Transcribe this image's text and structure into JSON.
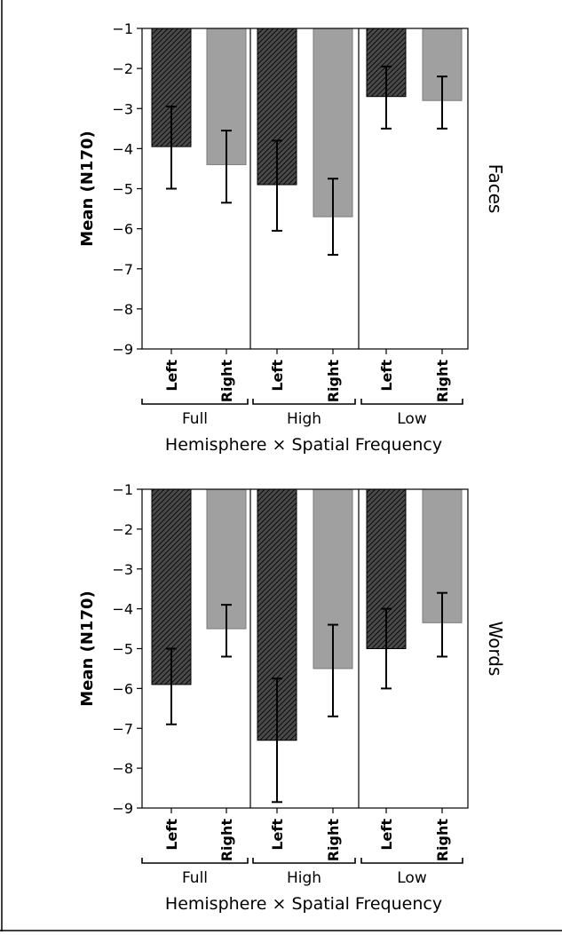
{
  "chart_data": [
    {
      "type": "bar",
      "panel_label": "Faces",
      "ylabel": "Mean (N170)",
      "xlabel": "Hemisphere × Spatial Frequency",
      "ylim": [
        -9,
        -1
      ],
      "yticks": [
        -1,
        -2,
        -3,
        -4,
        -5,
        -6,
        -7,
        -8,
        -9
      ],
      "ytick_labels": [
        "−1",
        "−2",
        "−3",
        "−4",
        "−5",
        "−6",
        "−7",
        "−8",
        "−9"
      ],
      "groups": [
        "Full",
        "High",
        "Low"
      ],
      "categories": [
        "Left",
        "Right"
      ],
      "bars": [
        {
          "group": "Full",
          "category": "Left",
          "value": -3.95,
          "err_low": -5.0,
          "err_high": -2.95
        },
        {
          "group": "Full",
          "category": "Right",
          "value": -4.4,
          "err_low": -5.35,
          "err_high": -3.55
        },
        {
          "group": "High",
          "category": "Left",
          "value": -4.9,
          "err_low": -6.05,
          "err_high": -3.8
        },
        {
          "group": "High",
          "category": "Right",
          "value": -5.7,
          "err_low": -6.65,
          "err_high": -4.75
        },
        {
          "group": "Low",
          "category": "Left",
          "value": -2.7,
          "err_low": -3.5,
          "err_high": -1.95
        },
        {
          "group": "Low",
          "category": "Right",
          "value": -2.8,
          "err_low": -3.5,
          "err_high": -2.2
        }
      ],
      "colors": {
        "Left": "#3a3a3a",
        "Right": "#a0a0a0"
      }
    },
    {
      "type": "bar",
      "panel_label": "Words",
      "ylabel": "Mean (N170)",
      "xlabel": "Hemisphere × Spatial Frequency",
      "ylim": [
        -9,
        -1
      ],
      "yticks": [
        -1,
        -2,
        -3,
        -4,
        -5,
        -6,
        -7,
        -8,
        -9
      ],
      "ytick_labels": [
        "−1",
        "−2",
        "−3",
        "−4",
        "−5",
        "−6",
        "−7",
        "−8",
        "−9"
      ],
      "groups": [
        "Full",
        "High",
        "Low"
      ],
      "categories": [
        "Left",
        "Right"
      ],
      "bars": [
        {
          "group": "Full",
          "category": "Left",
          "value": -5.9,
          "err_low": -6.9,
          "err_high": -5.0
        },
        {
          "group": "Full",
          "category": "Right",
          "value": -4.5,
          "err_low": -5.2,
          "err_high": -3.9
        },
        {
          "group": "High",
          "category": "Left",
          "value": -7.3,
          "err_low": -8.85,
          "err_high": -5.75
        },
        {
          "group": "High",
          "category": "Right",
          "value": -5.5,
          "err_low": -6.7,
          "err_high": -4.4
        },
        {
          "group": "Low",
          "category": "Left",
          "value": -5.0,
          "err_low": -6.0,
          "err_high": -4.0
        },
        {
          "group": "Low",
          "category": "Right",
          "value": -4.35,
          "err_low": -5.2,
          "err_high": -3.6
        }
      ],
      "colors": {
        "Left": "#3a3a3a",
        "Right": "#a0a0a0"
      }
    }
  ]
}
